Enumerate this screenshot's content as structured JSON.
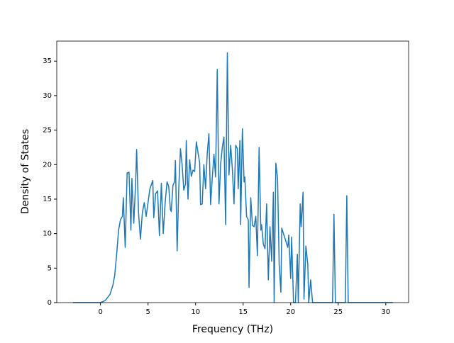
{
  "chart_data": {
    "type": "line",
    "xlabel": "Frequency (THz)",
    "ylabel": "Density of States",
    "x": [
      -2.9,
      0,
      0.5,
      1,
      1.3,
      1.5,
      1.7,
      1.9,
      2.1,
      2.3,
      2.4,
      2.6,
      2.8,
      3.0,
      3.2,
      3.3,
      3.5,
      3.7,
      3.8,
      4.0,
      4.2,
      4.4,
      4.6,
      4.8,
      5.0,
      5.2,
      5.5,
      5.6,
      5.8,
      6.0,
      6.2,
      6.4,
      6.6,
      6.8,
      7.0,
      7.18,
      7.35,
      7.44,
      7.62,
      7.79,
      7.88,
      8.06,
      8.23,
      8.41,
      8.58,
      8.76,
      8.94,
      9.02,
      9.2,
      9.38,
      9.55,
      9.73,
      9.9,
      10.08,
      10.26,
      10.43,
      10.52,
      10.7,
      10.87,
      11.05,
      11.22,
      11.4,
      11.58,
      11.75,
      11.93,
      12.1,
      12.28,
      12.46,
      12.63,
      12.81,
      12.98,
      13.16,
      13.34,
      13.51,
      13.69,
      13.86,
      14.04,
      14.22,
      14.39,
      14.48,
      14.66,
      14.74,
      14.92,
      15.1,
      15.18,
      15.36,
      15.54,
      15.62,
      15.8,
      15.98,
      16.15,
      16.33,
      16.5,
      16.68,
      16.86,
      16.94,
      17.12,
      17.3,
      17.47,
      17.65,
      17.82,
      18.0,
      18.18,
      18.26,
      18.44,
      18.62,
      18.79,
      18.97,
      19.06,
      19.7,
      19.8,
      20.0,
      20.1,
      20.3,
      20.5,
      20.7,
      20.8,
      21.0,
      21.1,
      21.3,
      21.4,
      21.6,
      21.8,
      21.9,
      22.1,
      22.3,
      24.4,
      24.55,
      24.7,
      25.75,
      25.9,
      26.05,
      30.75
    ],
    "series": [
      {
        "name": "Density of States",
        "color": "#1f77b4",
        "values": [
          0,
          0,
          0.3,
          1.2,
          2.5,
          4,
          7,
          10.5,
          12,
          12.5,
          15.2,
          8,
          18.8,
          18.9,
          10.5,
          18,
          11.5,
          17.5,
          22.2,
          13,
          9.2,
          13,
          14.5,
          12.5,
          14.5,
          16.5,
          17.7,
          12.3,
          15.8,
          16.2,
          9.7,
          17.3,
          10,
          14.5,
          17.5,
          16.8,
          13.5,
          13.2,
          17,
          17.5,
          20.6,
          7.5,
          16.5,
          22.3,
          20,
          16.3,
          17.2,
          23.5,
          15,
          20.7,
          18.3,
          19.2,
          19,
          23.3,
          21.7,
          20.3,
          14.2,
          14.3,
          20,
          16.5,
          21.5,
          24.5,
          14.2,
          18,
          21.5,
          18.2,
          33.8,
          14.3,
          20,
          22.5,
          24,
          11.3,
          36.2,
          18.5,
          22.8,
          19.5,
          14.3,
          22.8,
          22.3,
          16.5,
          23.5,
          11.3,
          25.2,
          17.5,
          18.2,
          12.5,
          12,
          2.2,
          15.2,
          11.2,
          11,
          12.5,
          6.8,
          22.5,
          10.5,
          11.3,
          8.5,
          7.8,
          14.3,
          3.3,
          11,
          6,
          16,
          0,
          20.2,
          18,
          5.5,
          1.5,
          10.8,
          8,
          9.8,
          3.5,
          9.5,
          0,
          0,
          7,
          0,
          14.3,
          11,
          16,
          0.5,
          8.2,
          5.5,
          0,
          3.3,
          0,
          0,
          12.8,
          0,
          0,
          15.5,
          0,
          0
        ]
      }
    ],
    "xlim": [
      -4.6,
      32.4
    ],
    "xticks": [
      0,
      5,
      10,
      15,
      20,
      25,
      30
    ],
    "ylim": [
      0,
      37.9
    ],
    "yticks": [
      0,
      5,
      10,
      15,
      20,
      25,
      30,
      35
    ]
  }
}
